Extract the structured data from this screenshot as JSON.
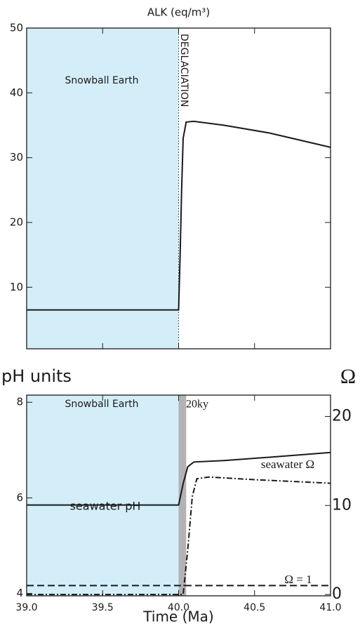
{
  "chart_data": [
    {
      "type": "line",
      "title": "ALK (eq/m³)",
      "xlim": [
        39.0,
        41.0
      ],
      "ylim": [
        0.5,
        50
      ],
      "yticks": [
        10,
        20,
        30,
        40,
        50
      ],
      "shaded": {
        "x": [
          39.0,
          40.0
        ],
        "color": "#d4eef9"
      },
      "annotations": [
        "Snowball Earth",
        "DEGLACIATION"
      ],
      "series": [
        {
          "name": "ALK",
          "color": "#1a1a1a",
          "x": [
            39.0,
            40.0,
            40.01,
            40.02,
            40.03,
            40.05,
            40.1,
            40.3,
            40.6,
            41.0
          ],
          "values": [
            6.5,
            6.5,
            15,
            25,
            33,
            35.5,
            35.6,
            35,
            33.8,
            31.6
          ]
        }
      ]
    },
    {
      "type": "line",
      "ylabel": "pH units",
      "y2label": "Ω",
      "xlabel": "Time (Ma)",
      "xlim": [
        39.0,
        41.0
      ],
      "xticks": [
        {
          "value": 39.0,
          "label": "39.0"
        },
        39.5,
        {
          "value": 40.0,
          "label": "40.0"
        },
        40.5,
        {
          "value": 41.0,
          "label": "41.0"
        }
      ],
      "ylim": [
        3.95,
        8.15
      ],
      "yticks": [
        4,
        6,
        8
      ],
      "y2lim": [
        -0.15,
        22.4
      ],
      "y2ticks": [
        0,
        10,
        20
      ],
      "shaded": {
        "x": [
          39.0,
          40.0
        ],
        "color": "#d4eef9"
      },
      "band": {
        "x": [
          40.0,
          40.05
        ],
        "color": "#b3b3b3"
      },
      "annotations": [
        "Snowball Earth",
        "20ky"
      ],
      "series": [
        {
          "name": "seawater pH",
          "color": "#1a1a1a",
          "x": [
            39.0,
            40.0,
            40.03,
            40.06,
            40.1,
            40.3,
            40.6,
            41.0
          ],
          "values": [
            5.85,
            5.85,
            6.3,
            6.65,
            6.75,
            6.78,
            6.85,
            6.95
          ]
        },
        {
          "name": "seawater Ω",
          "color": "#1a1a1a",
          "axis": "y2",
          "dash": "8 3 2 3",
          "x": [
            39.0,
            40.03,
            40.06,
            40.09,
            40.12,
            40.2,
            40.5,
            41.0
          ],
          "values": [
            0,
            0,
            5,
            11,
            13,
            13.2,
            12.9,
            12.5
          ]
        },
        {
          "name": "Ω = 1",
          "color": "#1a1a1a",
          "axis": "y2",
          "dash": "10 5",
          "x": [
            39.0,
            41.0
          ],
          "values": [
            1,
            1
          ]
        }
      ]
    }
  ]
}
